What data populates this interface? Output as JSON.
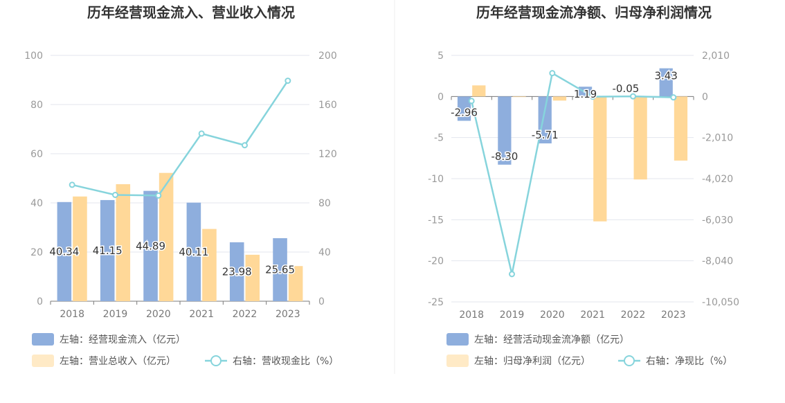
{
  "colors": {
    "bar_primary": "#8eaedd",
    "bar_secondary": "#ffd898",
    "line": "#86d4dc",
    "divider": "#eeeeee"
  },
  "chart_data": [
    {
      "type": "bar",
      "title": "历年经营现金流入、营业收入情况",
      "categories": [
        "2018",
        "2019",
        "2020",
        "2021",
        "2022",
        "2023"
      ],
      "ylim_left": [
        0,
        100
      ],
      "yticks_left": [
        "0",
        "20",
        "40",
        "60",
        "80",
        "100"
      ],
      "ylim_right": [
        0,
        200
      ],
      "yticks_right": [
        "0",
        "40",
        "80",
        "120",
        "160",
        "200"
      ],
      "grid": true,
      "legend_position": "bottom-left",
      "series": [
        {
          "name": "左轴：经营现金流入（亿元）",
          "kind": "bar",
          "axis": "left",
          "values": [
            40.34,
            41.15,
            44.89,
            40.11,
            23.98,
            25.65
          ],
          "labels": [
            "40.34",
            "41.15",
            "44.89",
            "40.11",
            "23.98",
            "25.65"
          ]
        },
        {
          "name": "左轴：营业总收入（亿元）",
          "kind": "bar",
          "axis": "left",
          "values": [
            42.6,
            47.6,
            52.2,
            29.4,
            18.9,
            14.3
          ]
        },
        {
          "name": "右轴：营收现金比（%）",
          "kind": "line",
          "axis": "right",
          "values": [
            94.7,
            86.5,
            86.0,
            136.4,
            126.9,
            179.4
          ]
        }
      ]
    },
    {
      "type": "bar",
      "title": "历年经营现金流净额、归母净利润情况",
      "categories": [
        "2018",
        "2019",
        "2020",
        "2021",
        "2022",
        "2023"
      ],
      "ylim_left": [
        -25,
        5
      ],
      "yticks_left": [
        "-25",
        "-20",
        "-15",
        "-10",
        "-5",
        "0",
        "5"
      ],
      "ylim_right": [
        -10050,
        2010
      ],
      "yticks_right": [
        "-10,050",
        "-8,040",
        "-6,030",
        "-4,020",
        "-2,010",
        "0",
        "2,010"
      ],
      "grid": true,
      "legend_position": "bottom-left",
      "series": [
        {
          "name": "左轴：经营活动现金流净额（亿元）",
          "kind": "bar",
          "axis": "left",
          "values": [
            -2.96,
            -8.3,
            -5.71,
            1.19,
            -0.05,
            3.43
          ],
          "labels": [
            "-2.96",
            "-8.30",
            "-5.71",
            "1.19",
            "-0.05",
            "3.43"
          ]
        },
        {
          "name": "左轴：归母净利润（亿元）",
          "kind": "bar",
          "axis": "left",
          "values": [
            1.35,
            -0.05,
            -0.5,
            -15.2,
            -10.1,
            -7.8
          ]
        },
        {
          "name": "右轴：净现比（%）",
          "kind": "line",
          "axis": "right",
          "values": [
            -219,
            -8690,
            1141,
            -8,
            6,
            -44
          ]
        }
      ]
    }
  ]
}
